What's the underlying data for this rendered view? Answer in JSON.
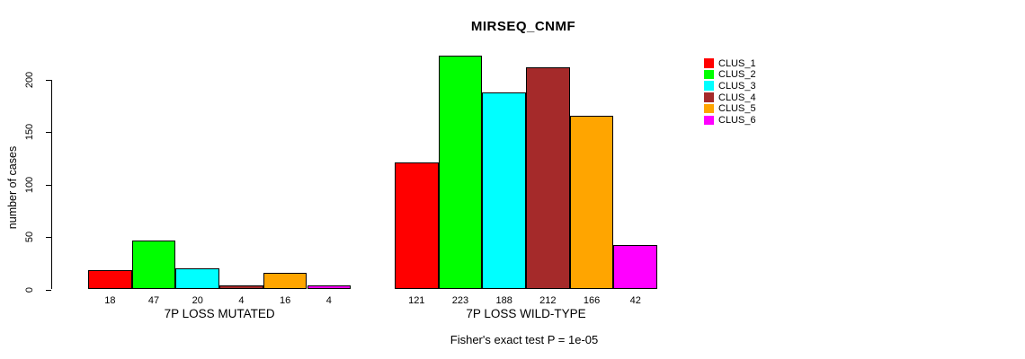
{
  "chart_data": {
    "type": "bar",
    "title": "MIRSEQ_CNMF",
    "ylabel": "number of cases",
    "xlabel": "",
    "yticks": [
      0,
      50,
      100,
      150,
      200
    ],
    "ylim": [
      0,
      230
    ],
    "grid": false,
    "legend_position": "right-outside-top",
    "bar_value_labels_shown": true,
    "groups": [
      {
        "label": "7P LOSS MUTATED",
        "values": [
          18,
          47,
          20,
          4,
          16,
          4
        ]
      },
      {
        "label": "7P LOSS WILD-TYPE",
        "values": [
          121,
          223,
          188,
          212,
          166,
          42
        ]
      }
    ],
    "series": [
      {
        "name": "CLUS_1",
        "color": "#FF0000"
      },
      {
        "name": "CLUS_2",
        "color": "#00FF00"
      },
      {
        "name": "CLUS_3",
        "color": "#00FFFF"
      },
      {
        "name": "CLUS_4",
        "color": "#A52A2A"
      },
      {
        "name": "CLUS_5",
        "color": "#FFA500"
      },
      {
        "name": "CLUS_6",
        "color": "#FF00FF"
      }
    ],
    "annotation": "Fisher's exact test P = 1e-05",
    "colors": {
      "axis": "#000000",
      "background": "#FFFFFF",
      "bar_border": "#000000"
    }
  }
}
